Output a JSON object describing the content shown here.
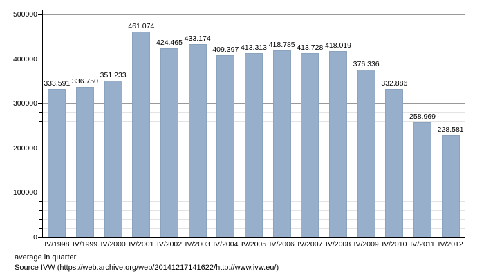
{
  "chart_data": {
    "type": "bar",
    "title": "",
    "caption": "average in quarter",
    "source": "Source IVW (https://web.archive.org/web/20141217141622/http://www.ivw.eu/)",
    "categories": [
      "IV/1998",
      "IV/1999",
      "IV/2000",
      "IV/2001",
      "IV/2002",
      "IV/2003",
      "IV/2004",
      "IV/2005",
      "IV/2006",
      "IV/2007",
      "IV/2008",
      "IV/2009",
      "IV/2010",
      "IV/2011",
      "IV/2012"
    ],
    "values": [
      333591,
      336750,
      351233,
      461074,
      424465,
      433174,
      409397,
      413313,
      418785,
      413728,
      418019,
      376336,
      332886,
      258969,
      228581
    ],
    "value_labels": [
      "333.591",
      "336.750",
      "351.233",
      "461.074",
      "424.465",
      "433.174",
      "409.397",
      "413.313",
      "418.785",
      "413.728",
      "418.019",
      "376.336",
      "332.886",
      "258.969",
      "228.581"
    ],
    "xlabel": "",
    "ylabel": "",
    "ylim": [
      0,
      500000
    ],
    "y_major_step": 100000,
    "y_minor_step": 20000,
    "y_tick_labels": [
      "0",
      "100000",
      "200000",
      "300000",
      "400000",
      "500000"
    ],
    "grid": true,
    "legend_position": "none",
    "bar_color": "#97afca",
    "bar_border_color": "#8aa3be",
    "major_grid_color": "#999999",
    "minor_grid_color": "#e3e3e3",
    "axis_color": "#000000"
  }
}
